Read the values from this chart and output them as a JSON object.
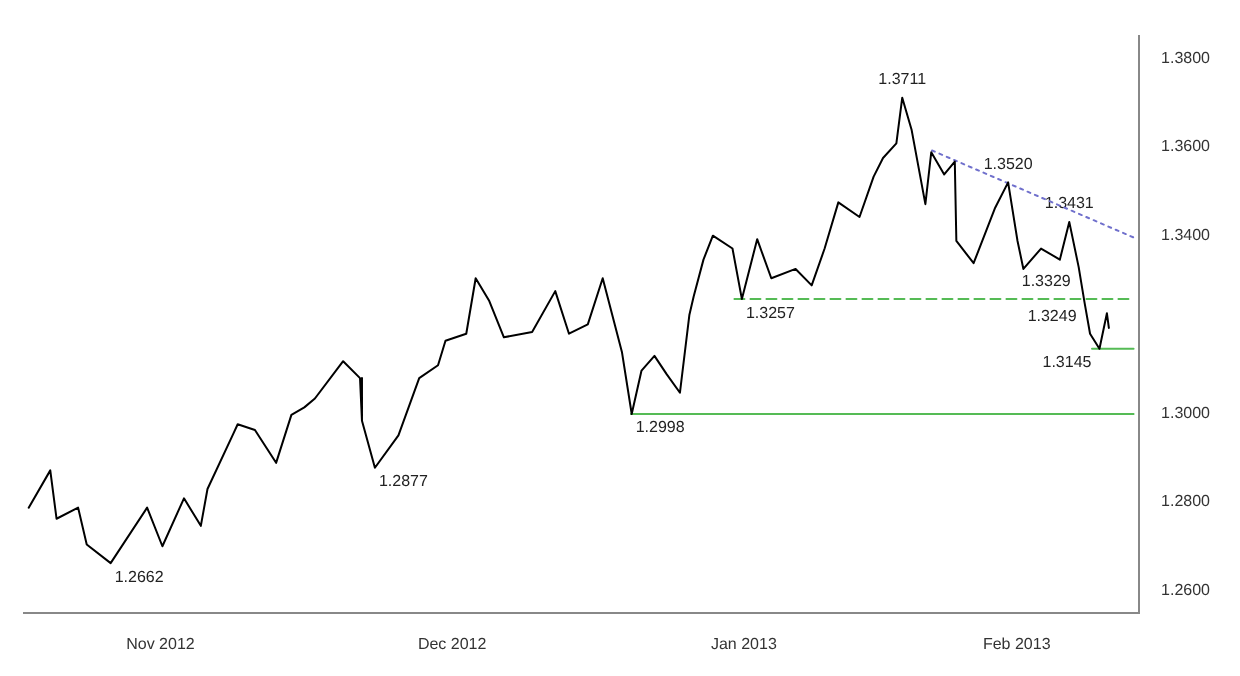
{
  "chart_data": {
    "type": "line",
    "marker": "none",
    "grid": false,
    "legend": false,
    "x": [
      "2012-11-01T00:00",
      "2012-11-03T07:00",
      "2012-11-03T23:00",
      "2012-11-06T06:00",
      "2012-11-07T04:00",
      "2012-11-09T17:00",
      "2012-11-13T14:00",
      "2012-11-15T05:00",
      "2012-11-17T12:00",
      "2012-11-19T07:00",
      "2012-11-20T00:00",
      "2012-11-22T18:00",
      "2012-11-23T05:00",
      "2012-11-25T01:00",
      "2012-11-27T07:00",
      "2012-11-28T22:00",
      "2012-11-30T07:00",
      "2012-12-01T10:00",
      "2012-12-04T10:00",
      "2012-12-06T05:00",
      "2012-12-06T10:00",
      "2012-12-07T19:00",
      "2012-12-10T07:00",
      "2012-12-12T12:00",
      "2012-12-14T12:00",
      "2012-12-15T07:00",
      "2012-12-17T12:00",
      "2012-12-18T12:00",
      "2012-12-19T22:00",
      "2012-12-21T12:00",
      "2012-12-24T12:00",
      "2012-12-26T23:00",
      "2012-12-28T10:00",
      "2012-12-30T10:00",
      "2013-01-01T00:00",
      "2013-01-03T01:00",
      "2013-01-04T02:00",
      "2013-01-05T03:00",
      "2013-01-06T12:00",
      "2013-01-07T19:00",
      "2013-01-09T05:00",
      "2013-01-10T05:00",
      "2013-01-10T16:00",
      "2013-01-11T17:00",
      "2013-01-12T17:00",
      "2013-01-14T19:00",
      "2013-01-15T19:00",
      "2013-01-17T10:00",
      "2013-01-18T22:00",
      "2013-01-21T12:00",
      "2013-01-23T05:00",
      "2013-01-24T14:00",
      "2013-01-26T01:00",
      "2013-01-28T07:00",
      "2013-01-29T19:00",
      "2013-01-30T19:00",
      "2013-02-01T05:00",
      "2013-02-01T20:00",
      "2013-02-02T20:00",
      "2013-02-04T07:00",
      "2013-02-04T22:00",
      "2013-02-06T07:00",
      "2013-02-07T10:00",
      "2013-02-07T14:00",
      "2013-02-09T10:00",
      "2013-02-11T17:00",
      "2013-02-13T02:00",
      "2013-02-14T02:00",
      "2013-02-14T17:00",
      "2013-02-16T14:00",
      "2013-02-18T14:00",
      "2013-02-19T14:00",
      "2013-02-20T14:00",
      "2013-02-21T05:00",
      "2013-02-21T19:00",
      "2013-02-22T19:00",
      "2013-02-23T14:00",
      "2013-02-23T19:00"
    ],
    "series": [
      {
        "color": "#000000",
        "values": [
          1.2787,
          1.2871,
          1.2762,
          1.2787,
          1.2704,
          1.2662,
          1.2787,
          1.27,
          1.2808,
          1.2746,
          1.2829,
          1.2954,
          1.2975,
          1.2962,
          1.2888,
          1.2996,
          1.3013,
          1.3033,
          1.3117,
          1.3079,
          1.2983,
          1.2877,
          1.295,
          1.3079,
          1.3108,
          1.3163,
          1.3179,
          1.3304,
          1.3254,
          1.3171,
          1.3183,
          1.3275,
          1.3179,
          1.32,
          1.3304,
          1.3138,
          1.2998,
          1.3096,
          1.3129,
          1.3088,
          1.3046,
          1.3221,
          1.3263,
          1.3346,
          1.34,
          1.3371,
          1.3257,
          1.3392,
          1.3304,
          1.3325,
          1.3288,
          1.3371,
          1.3475,
          1.3442,
          1.3533,
          1.3575,
          1.3608,
          1.3711,
          1.3638,
          1.3471,
          1.3588,
          1.3538,
          1.3567,
          1.3388,
          1.3338,
          1.3463,
          1.352,
          1.3388,
          1.3325,
          1.3371,
          1.3346,
          1.3431,
          1.3329,
          1.3249,
          1.3179,
          1.3145,
          1.3225,
          1.3192
        ]
      },
      {
        "type": "line",
        "x": [
          "2013-02-05T00:00",
          "2013-02-26T10:00"
        ],
        "values": [
          1.3592,
          1.3396
        ],
        "color": "#7070cc",
        "line_style": "dotted"
      },
      {
        "type": "line",
        "x": [
          "2013-01-15T00:00",
          "2013-02-26T10:00"
        ],
        "values": [
          1.3257,
          1.3257
        ],
        "color": "#55bb55",
        "line_style": "dashed"
      },
      {
        "type": "line",
        "x": [
          "2013-01-04T00:00",
          "2013-02-26T10:00"
        ],
        "values": [
          1.2998,
          1.2998
        ],
        "color": "#55bb55",
        "line_style": "solid"
      },
      {
        "type": "line",
        "x": [
          "2013-02-22T00:00",
          "2013-02-26T10:00"
        ],
        "values": [
          1.3145,
          1.3145
        ],
        "color": "#55bb55",
        "line_style": "solid"
      }
    ],
    "xlim": [
      "2012-10-31T12:00",
      "2013-02-27T00:00"
    ],
    "xticks": [
      {
        "value": "2012-11-15",
        "label": "Nov 2012"
      },
      {
        "value": "2012-12-16",
        "label": "Dec 2012"
      },
      {
        "value": "2013-01-16",
        "label": "Jan 2013"
      },
      {
        "value": "2013-02-14",
        "label": "Feb 2013"
      }
    ],
    "ylim": [
      1.255,
      1.385
    ],
    "yticks": [
      {
        "value": 1.26,
        "label": "1.2600"
      },
      {
        "value": 1.28,
        "label": "1.2800"
      },
      {
        "value": 1.3,
        "label": "1.3000"
      },
      {
        "value": 1.34,
        "label": "1.3400"
      },
      {
        "value": 1.36,
        "label": "1.3600"
      },
      {
        "value": 1.38,
        "label": "1.3800"
      }
    ],
    "annotations": [
      {
        "text": "1.2662",
        "x": "2012-11-09T17:00",
        "y": 1.2662
      },
      {
        "text": "1.2877",
        "x": "2012-12-07T19:00",
        "y": 1.2877
      },
      {
        "text": "1.2998",
        "x": "2013-01-04T02:00",
        "y": 1.2998
      },
      {
        "text": "1.3257",
        "x": "2013-01-15T19:00",
        "y": 1.3257
      },
      {
        "text": "1.3711",
        "x": "2013-02-01T20:00",
        "y": 1.3711
      },
      {
        "text": "1.3520",
        "x": "2013-02-13T02:00",
        "y": 1.352
      },
      {
        "text": "1.3431",
        "x": "2013-02-19T14:00",
        "y": 1.3431
      },
      {
        "text": "1.3329",
        "x": "2013-02-20T14:00",
        "y": 1.3329
      },
      {
        "text": "1.3249",
        "x": "2013-02-21T05:00",
        "y": 1.3249
      },
      {
        "text": "1.3145",
        "x": "2013-02-22T19:00",
        "y": 1.3145
      }
    ]
  }
}
